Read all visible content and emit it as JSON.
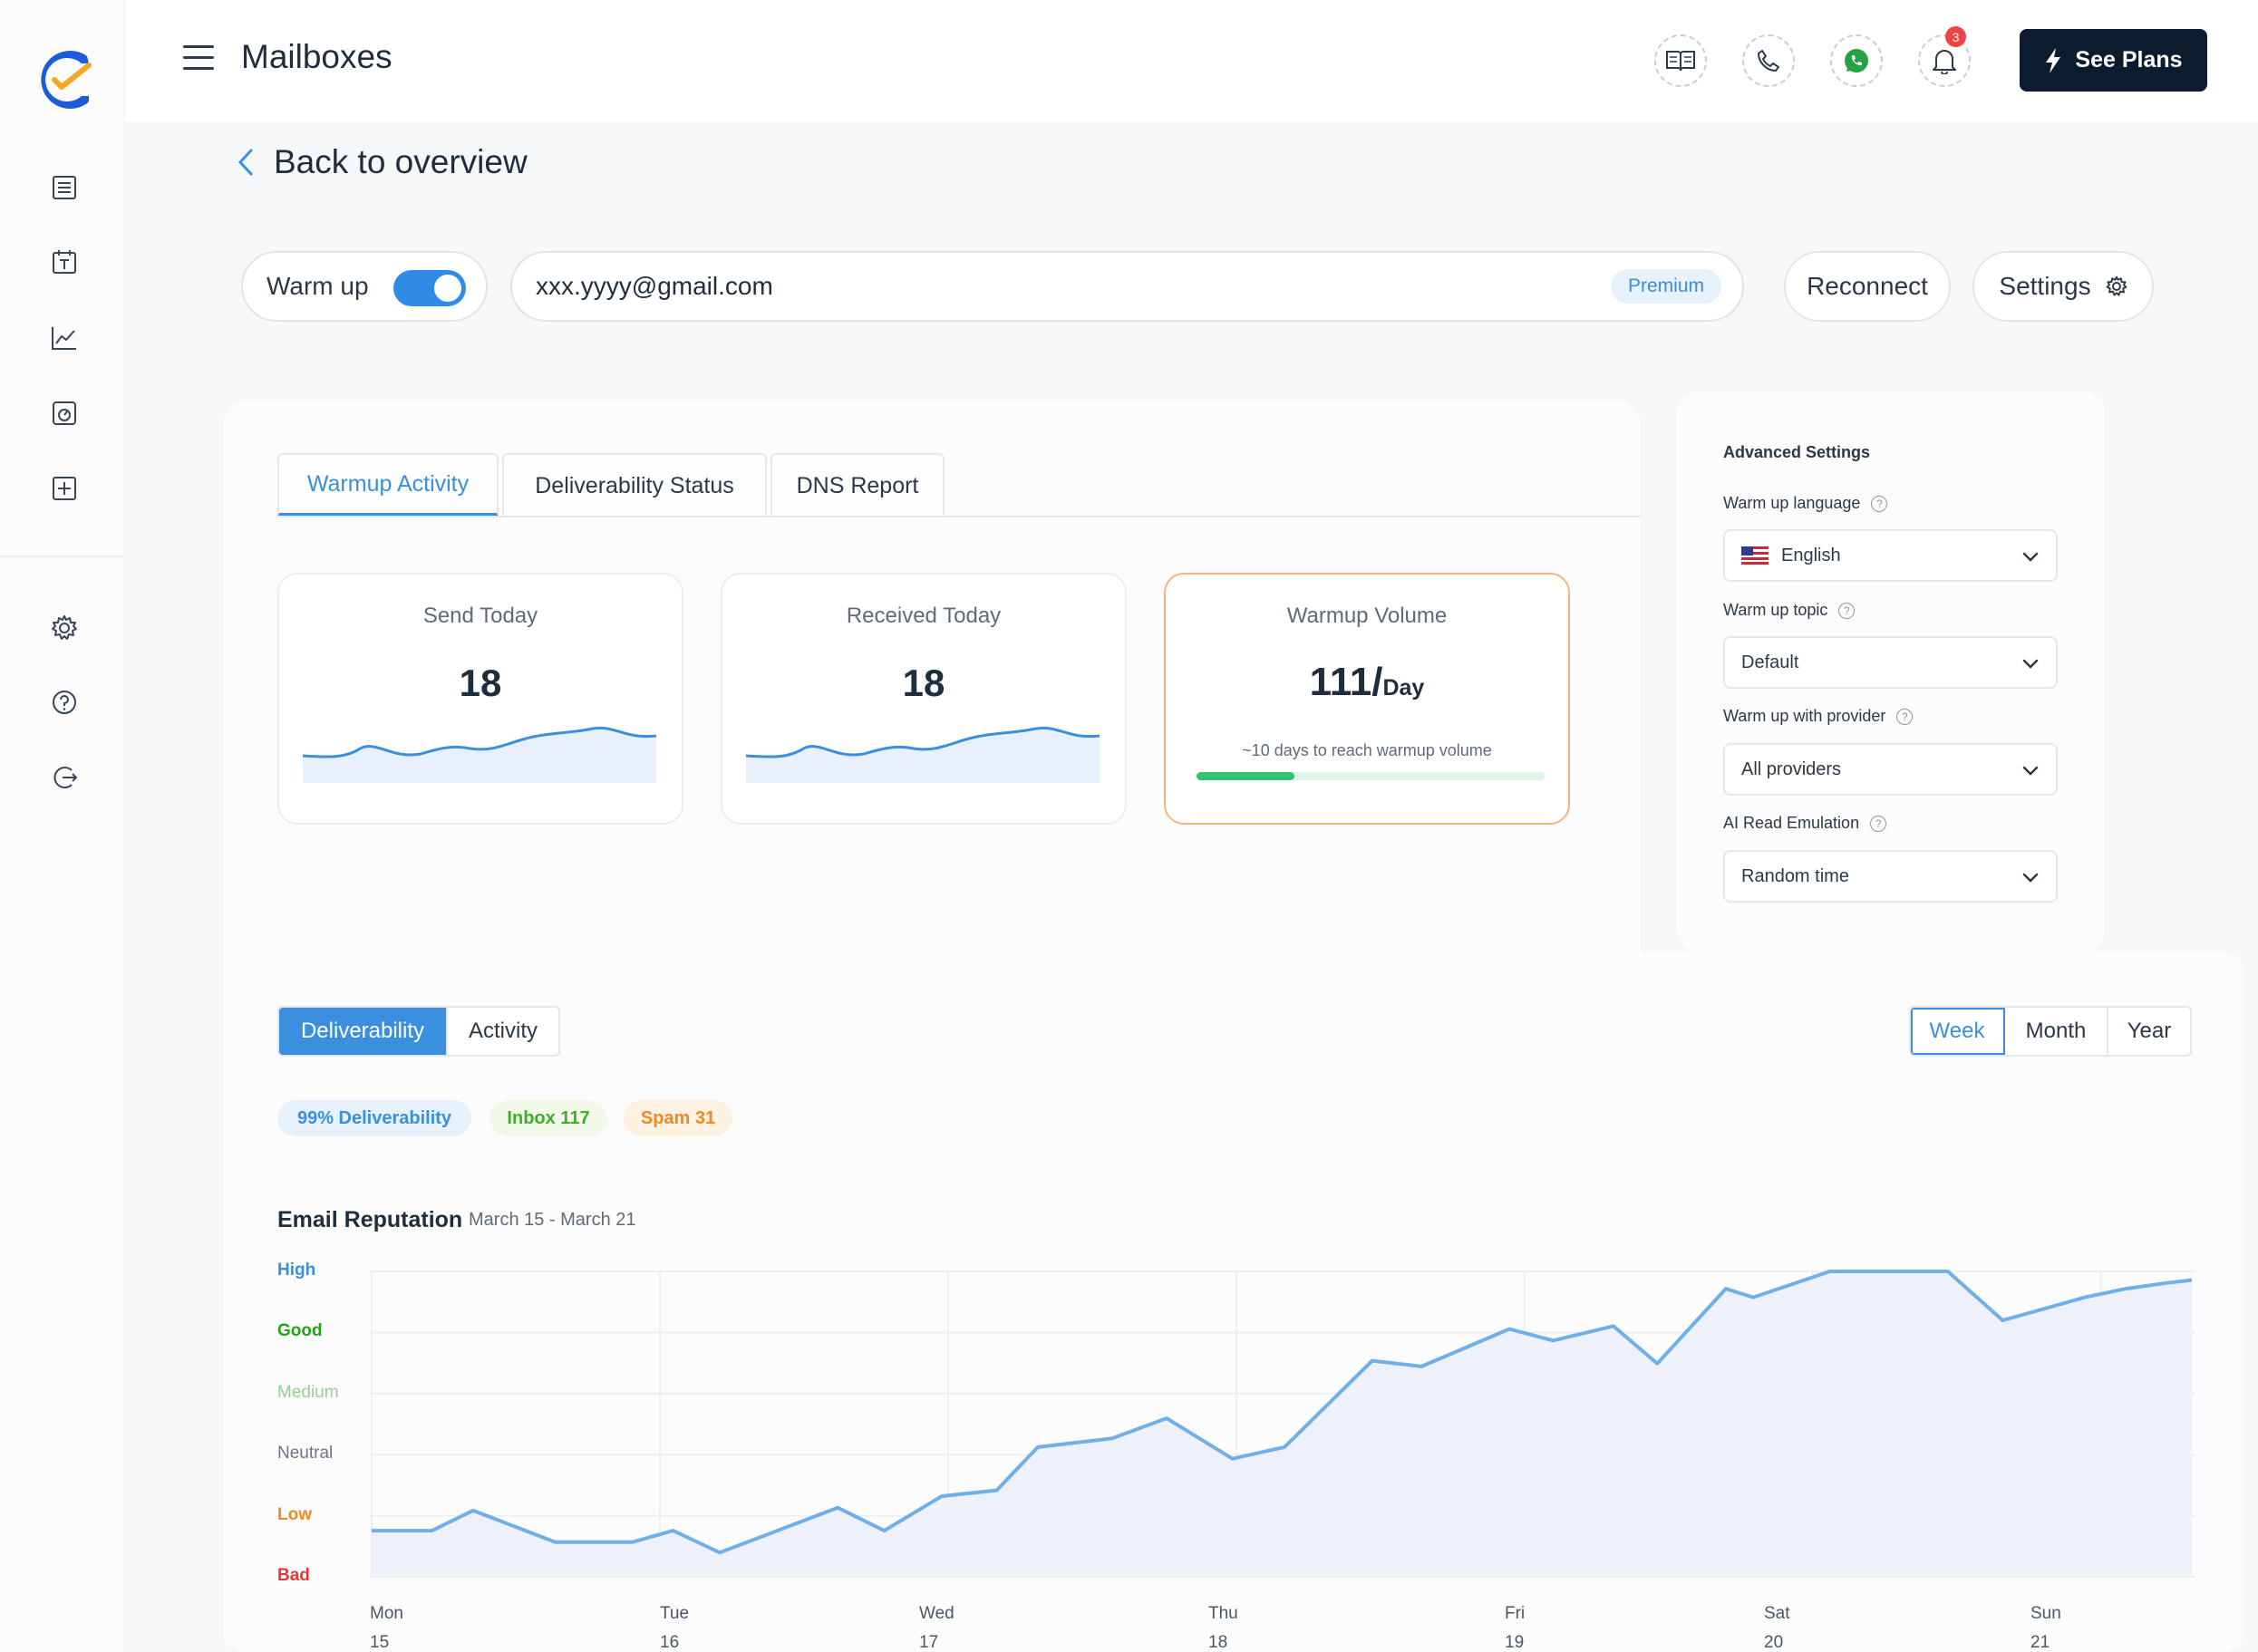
{
  "app": {
    "title": "Mailboxes"
  },
  "header": {
    "see_plans_label": "See Plans",
    "notification_count": "3"
  },
  "nav": {
    "back_label": "Back to overview"
  },
  "mailbox": {
    "warmup_label": "Warm up",
    "warmup_enabled": true,
    "email": "xxx.yyyy@gmail.com",
    "plan_badge": "Premium",
    "reconnect_label": "Reconnect",
    "settings_label": "Settings"
  },
  "tabs": [
    {
      "label": "Warmup Activity",
      "active": true
    },
    {
      "label": "Deliverability Status",
      "active": false
    },
    {
      "label": "DNS Report",
      "active": false
    }
  ],
  "stats": {
    "send_today": {
      "label": "Send Today",
      "value": "18"
    },
    "received_today": {
      "label": "Received Today",
      "value": "18"
    },
    "warmup_volume": {
      "label": "Warmup Volume",
      "value": "111/",
      "unit": "Day",
      "note": "~10 days to reach warmup volume",
      "progress": 0.28
    }
  },
  "advanced": {
    "title": "Advanced Settings",
    "language": {
      "label": "Warm up language",
      "value": "English"
    },
    "topic": {
      "label": "Warm up topic",
      "value": "Default"
    },
    "provider": {
      "label": "Warm up with provider",
      "value": "All providers"
    },
    "read_emulation": {
      "label": "AI Read Emulation",
      "value": "Random time"
    }
  },
  "view_toggle": {
    "deliverability": "Deliverability",
    "activity": "Activity",
    "active": "Deliverability"
  },
  "period_toggle": {
    "week": "Week",
    "month": "Month",
    "year": "Year",
    "active": "Week"
  },
  "chips": {
    "deliverability": "99% Deliverability",
    "inbox": "Inbox 117",
    "spam": "Spam 31"
  },
  "colors": {
    "accent": "#3a8fde",
    "dark": "#0d1b2e",
    "good": "#22a31a",
    "medium": "#8fd48a",
    "low": "#f08a24",
    "bad": "#e53935"
  },
  "chart_data": {
    "type": "area",
    "title": "Email Reputation",
    "subtitle": "March 15 - March 21",
    "y_categories": [
      "Bad",
      "Low",
      "Neutral",
      "Medium",
      "Good",
      "High"
    ],
    "y_category_colors": [
      "#e53935",
      "#f08a24",
      "#6b7785",
      "#8fd48a",
      "#22a31a",
      "#3a8fde"
    ],
    "x_ticks": [
      {
        "day": "Mon",
        "date": "15"
      },
      {
        "day": "Tue",
        "date": "16"
      },
      {
        "day": "Wed",
        "date": "17"
      },
      {
        "day": "Thu",
        "date": "18"
      },
      {
        "day": "Fri",
        "date": "19"
      },
      {
        "day": "Sat",
        "date": "20"
      },
      {
        "day": "Sun",
        "date": "21"
      }
    ],
    "ylim": [
      0,
      5.3
    ],
    "x": [
      0,
      0.22,
      0.37,
      0.67,
      0.95,
      1.1,
      1.27,
      1.7,
      1.87,
      2.08,
      2.28,
      2.43,
      2.7,
      2.9,
      3.14,
      3.33,
      3.65,
      3.83,
      4.15,
      4.31,
      4.53,
      4.69,
      4.94,
      5.04,
      5.32,
      5.5,
      5.75,
      5.95,
      6.25,
      6.4,
      6.55,
      6.64
    ],
    "values": [
      0.8,
      0.8,
      1.15,
      0.6,
      0.6,
      0.8,
      0.42,
      1.2,
      0.8,
      1.4,
      1.5,
      2.25,
      2.4,
      2.75,
      2.05,
      2.25,
      3.75,
      3.65,
      4.3,
      4.1,
      4.35,
      3.7,
      5.0,
      4.85,
      5.3,
      5.3,
      5.3,
      4.45,
      4.85,
      5.0,
      5.1,
      5.15
    ]
  }
}
